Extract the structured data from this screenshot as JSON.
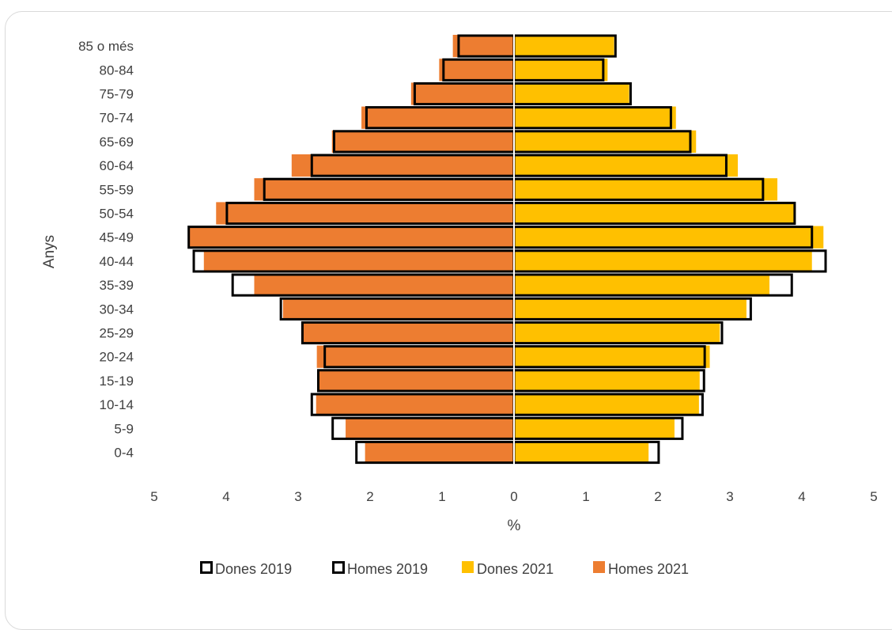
{
  "chart_data": {
    "type": "bar",
    "orientation": "horizontal-population-pyramid",
    "categories": [
      "0-4",
      "5-9",
      "10-14",
      "15-19",
      "20-24",
      "25-29",
      "30-34",
      "35-39",
      "40-44",
      "45-49",
      "50-54",
      "55-59",
      "60-64",
      "65-69",
      "70-74",
      "75-79",
      "80-84",
      "85 o més"
    ],
    "series": [
      {
        "name": "Dones 2019",
        "side": "right",
        "style": "outline",
        "color": "#000000",
        "values": [
          2.01,
          2.34,
          2.62,
          2.64,
          2.65,
          2.89,
          3.29,
          3.86,
          4.33,
          4.14,
          3.9,
          3.46,
          2.95,
          2.45,
          2.18,
          1.62,
          1.24,
          1.41
        ]
      },
      {
        "name": "Homes 2019",
        "side": "left",
        "style": "outline",
        "color": "#000000",
        "values": [
          2.19,
          2.52,
          2.81,
          2.72,
          2.63,
          2.94,
          3.24,
          3.91,
          4.45,
          4.52,
          3.99,
          3.47,
          2.81,
          2.5,
          2.05,
          1.38,
          0.98,
          0.77
        ]
      },
      {
        "name": "Dones 2021",
        "side": "right",
        "style": "fill",
        "color": "#FFC000",
        "values": [
          1.87,
          2.23,
          2.57,
          2.58,
          2.72,
          2.86,
          3.23,
          3.55,
          4.14,
          4.3,
          3.89,
          3.66,
          3.11,
          2.53,
          2.25,
          1.6,
          1.3,
          1.39
        ]
      },
      {
        "name": "Homes 2021",
        "side": "left",
        "style": "fill",
        "color": "#ED7D31",
        "values": [
          2.07,
          2.34,
          2.75,
          2.72,
          2.74,
          2.94,
          3.21,
          3.61,
          4.31,
          4.52,
          4.14,
          3.61,
          3.09,
          2.53,
          2.12,
          1.43,
          1.04,
          0.85
        ]
      }
    ],
    "xlabel": "%",
    "ylabel": "Anys",
    "xlim": [
      -5,
      5
    ],
    "xticks": [
      {
        "value": -5,
        "label": "5"
      },
      {
        "value": -4,
        "label": "4"
      },
      {
        "value": -3,
        "label": "3"
      },
      {
        "value": -2,
        "label": "2"
      },
      {
        "value": -1,
        "label": "1"
      },
      {
        "value": 0,
        "label": "0"
      },
      {
        "value": 1,
        "label": "1"
      },
      {
        "value": 2,
        "label": "2"
      },
      {
        "value": 3,
        "label": "3"
      },
      {
        "value": 4,
        "label": "4"
      },
      {
        "value": 5,
        "label": "5"
      }
    ],
    "grid": false,
    "legend_position": "bottom",
    "legend": [
      "Dones 2019",
      "Homes 2019",
      "Dones 2021",
      "Homes 2021"
    ]
  }
}
